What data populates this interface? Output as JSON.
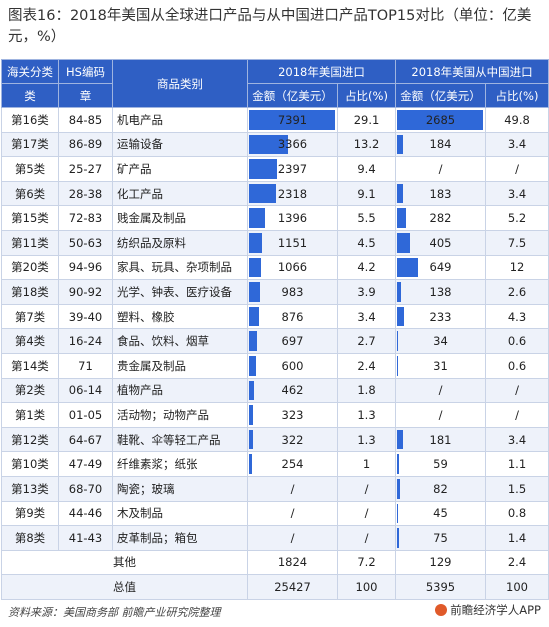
{
  "title": "图表16：2018年美国从全球进口产品与从中国进口产品TOP15对比（单位：亿美元，%）",
  "headers": {
    "category_top": "海关分类",
    "category_bottom": "类",
    "hs_top": "HS编码",
    "hs_bottom": "章",
    "product": "商品类别",
    "group_us": "2018年美国进口",
    "group_cn": "2018年美国从中国进口",
    "amount": "金额（亿美元）",
    "share": "占比(%)"
  },
  "footer": {
    "source": "资料来源：美国商务部 前瞻产业研究院整理",
    "brand": "前瞻经济学人APP",
    "brand_icon": "qianzhan-logo-icon"
  },
  "colors": {
    "header_bg": "#2f5fc4",
    "bar": "#2f68d8",
    "alt_row": "#eef2fa"
  },
  "chart_data": {
    "type": "table",
    "bar_scale_max_us": 7391,
    "bar_scale_max_cn": 2685,
    "rows": [
      {
        "cls": "第16类",
        "hs": "84-85",
        "product": "机电产品",
        "us_amount": "7391",
        "us_share": "29.1",
        "cn_amount": "2685",
        "cn_share": "49.8"
      },
      {
        "cls": "第17类",
        "hs": "86-89",
        "product": "运输设备",
        "us_amount": "3366",
        "us_share": "13.2",
        "cn_amount": "184",
        "cn_share": "3.4"
      },
      {
        "cls": "第5类",
        "hs": "25-27",
        "product": "矿产品",
        "us_amount": "2397",
        "us_share": "9.4",
        "cn_amount": "/",
        "cn_share": "/"
      },
      {
        "cls": "第6类",
        "hs": "28-38",
        "product": "化工产品",
        "us_amount": "2318",
        "us_share": "9.1",
        "cn_amount": "183",
        "cn_share": "3.4"
      },
      {
        "cls": "第15类",
        "hs": "72-83",
        "product": "贱金属及制品",
        "us_amount": "1396",
        "us_share": "5.5",
        "cn_amount": "282",
        "cn_share": "5.2"
      },
      {
        "cls": "第11类",
        "hs": "50-63",
        "product": "纺织品及原料",
        "us_amount": "1151",
        "us_share": "4.5",
        "cn_amount": "405",
        "cn_share": "7.5"
      },
      {
        "cls": "第20类",
        "hs": "94-96",
        "product": "家具、玩具、杂项制品",
        "us_amount": "1066",
        "us_share": "4.2",
        "cn_amount": "649",
        "cn_share": "12"
      },
      {
        "cls": "第18类",
        "hs": "90-92",
        "product": "光学、钟表、医疗设备",
        "us_amount": "983",
        "us_share": "3.9",
        "cn_amount": "138",
        "cn_share": "2.6"
      },
      {
        "cls": "第7类",
        "hs": "39-40",
        "product": "塑料、橡胶",
        "us_amount": "876",
        "us_share": "3.4",
        "cn_amount": "233",
        "cn_share": "4.3"
      },
      {
        "cls": "第4类",
        "hs": "16-24",
        "product": "食品、饮料、烟草",
        "us_amount": "697",
        "us_share": "2.7",
        "cn_amount": "34",
        "cn_share": "0.6"
      },
      {
        "cls": "第14类",
        "hs": "71",
        "product": "贵金属及制品",
        "us_amount": "600",
        "us_share": "2.4",
        "cn_amount": "31",
        "cn_share": "0.6"
      },
      {
        "cls": "第2类",
        "hs": "06-14",
        "product": "植物产品",
        "us_amount": "462",
        "us_share": "1.8",
        "cn_amount": "/",
        "cn_share": "/"
      },
      {
        "cls": "第1类",
        "hs": "01-05",
        "product": "活动物；动物产品",
        "us_amount": "323",
        "us_share": "1.3",
        "cn_amount": "/",
        "cn_share": "/"
      },
      {
        "cls": "第12类",
        "hs": "64-67",
        "product": "鞋靴、伞等轻工产品",
        "us_amount": "322",
        "us_share": "1.3",
        "cn_amount": "181",
        "cn_share": "3.4"
      },
      {
        "cls": "第10类",
        "hs": "47-49",
        "product": "纤维素浆；纸张",
        "us_amount": "254",
        "us_share": "1",
        "cn_amount": "59",
        "cn_share": "1.1"
      },
      {
        "cls": "第13类",
        "hs": "68-70",
        "product": "陶瓷；玻璃",
        "us_amount": "/",
        "us_share": "/",
        "cn_amount": "82",
        "cn_share": "1.5"
      },
      {
        "cls": "第9类",
        "hs": "44-46",
        "product": "木及制品",
        "us_amount": "/",
        "us_share": "/",
        "cn_amount": "45",
        "cn_share": "0.8"
      },
      {
        "cls": "第8类",
        "hs": "41-43",
        "product": "皮革制品；箱包",
        "us_amount": "/",
        "us_share": "/",
        "cn_amount": "75",
        "cn_share": "1.4"
      }
    ],
    "summary": [
      {
        "label": "其他",
        "us_amount": "1824",
        "us_share": "7.2",
        "cn_amount": "129",
        "cn_share": "2.4"
      },
      {
        "label": "总值",
        "us_amount": "25427",
        "us_share": "100",
        "cn_amount": "5395",
        "cn_share": "100"
      }
    ]
  }
}
